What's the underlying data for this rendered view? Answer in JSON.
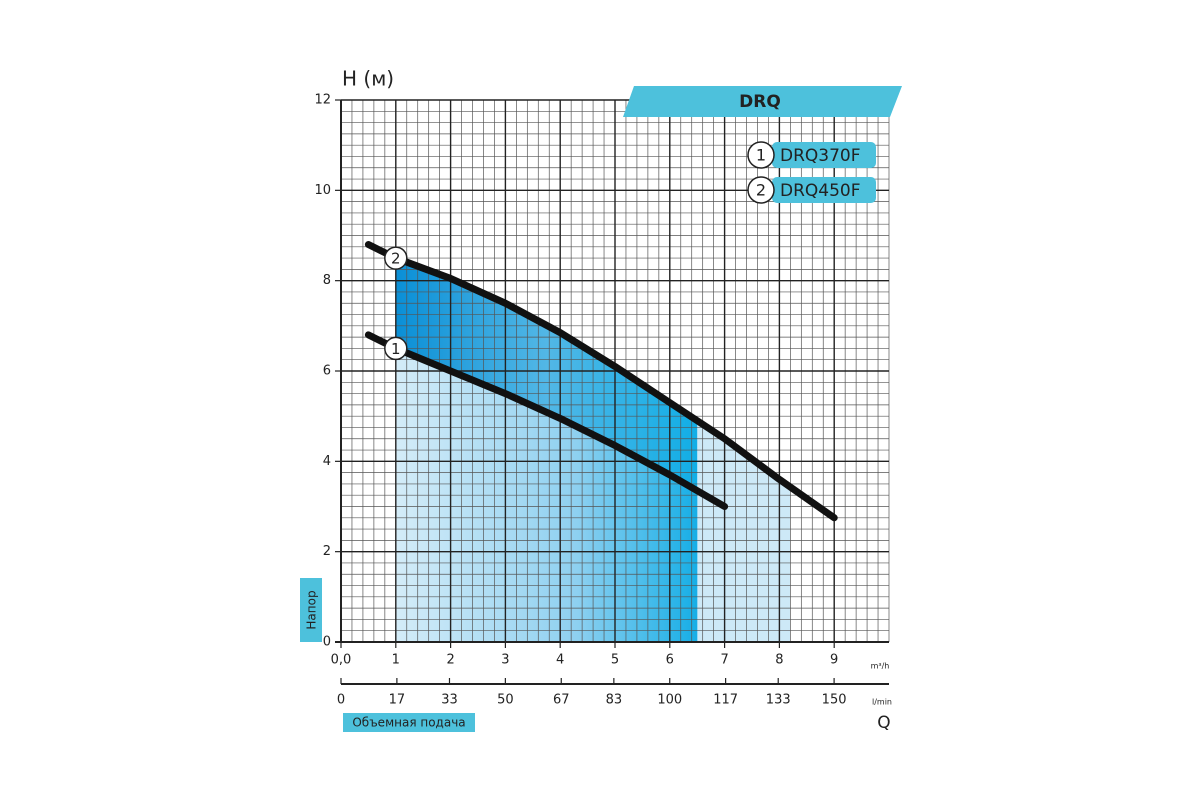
{
  "chart_data": {
    "type": "line",
    "title": "DRQ",
    "y_label": "H (м)",
    "y_axis_title": "Напор",
    "x_axis_title": "Объемная подача",
    "x_symbol": "Q",
    "x_unit": "m³/h",
    "x2_unit": "l/min",
    "xlim": [
      0,
      10
    ],
    "ylim": [
      0,
      12
    ],
    "x2lim": [
      0,
      166.7
    ],
    "xticks": [
      {
        "value": 0,
        "label": "0,0"
      },
      1,
      2,
      3,
      4,
      5,
      6,
      7,
      8,
      9
    ],
    "x2ticks": [
      0,
      17,
      33,
      50,
      67,
      83,
      100,
      117,
      133,
      150
    ],
    "yticks": [
      0,
      2,
      4,
      6,
      8,
      10,
      12
    ],
    "grid": true,
    "series": [
      {
        "name": "DRQ370F",
        "marker": "1",
        "color": "#111111",
        "range": [
          1,
          6.5
        ],
        "x": [
          0.5,
          1,
          2,
          3,
          4,
          5,
          6,
          7
        ],
        "values": [
          6.8,
          6.5,
          6.0,
          5.5,
          4.95,
          4.35,
          3.7,
          3.0
        ]
      },
      {
        "name": "DRQ450F",
        "marker": "2",
        "color": "#111111",
        "range": [
          1,
          8.2
        ],
        "x": [
          0.5,
          1,
          2,
          3,
          4,
          5,
          6,
          7,
          8,
          9
        ],
        "values": [
          8.8,
          8.5,
          8.05,
          7.5,
          6.85,
          6.1,
          5.3,
          4.5,
          3.6,
          2.75
        ]
      }
    ]
  }
}
